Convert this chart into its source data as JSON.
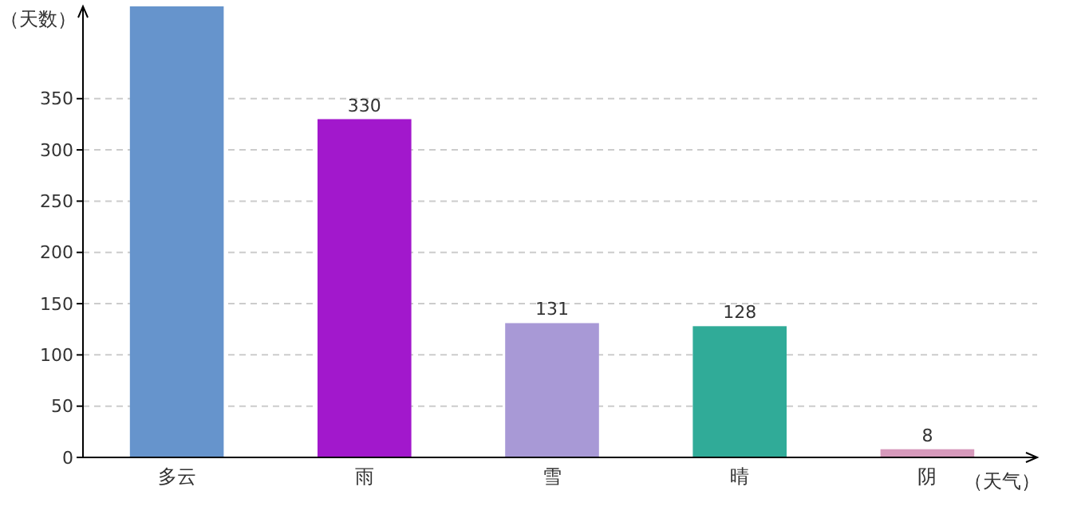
{
  "chart_data": {
    "type": "bar",
    "xlabel": "（天气）",
    "ylabel": "（天数）",
    "categories": [
      "多云",
      "雨",
      "雪",
      "晴",
      "阴"
    ],
    "values": [
      440,
      330,
      131,
      128,
      8
    ],
    "colors": [
      "#6694cc",
      "#a218cc",
      "#a899d6",
      "#30ab98",
      "#d699bb"
    ],
    "value_labels": [
      null,
      "330",
      "131",
      "128",
      "8"
    ],
    "ylim": [
      0,
      440
    ],
    "yticks": [
      0,
      50,
      100,
      150,
      200,
      250,
      300,
      350
    ],
    "grid": "y"
  }
}
